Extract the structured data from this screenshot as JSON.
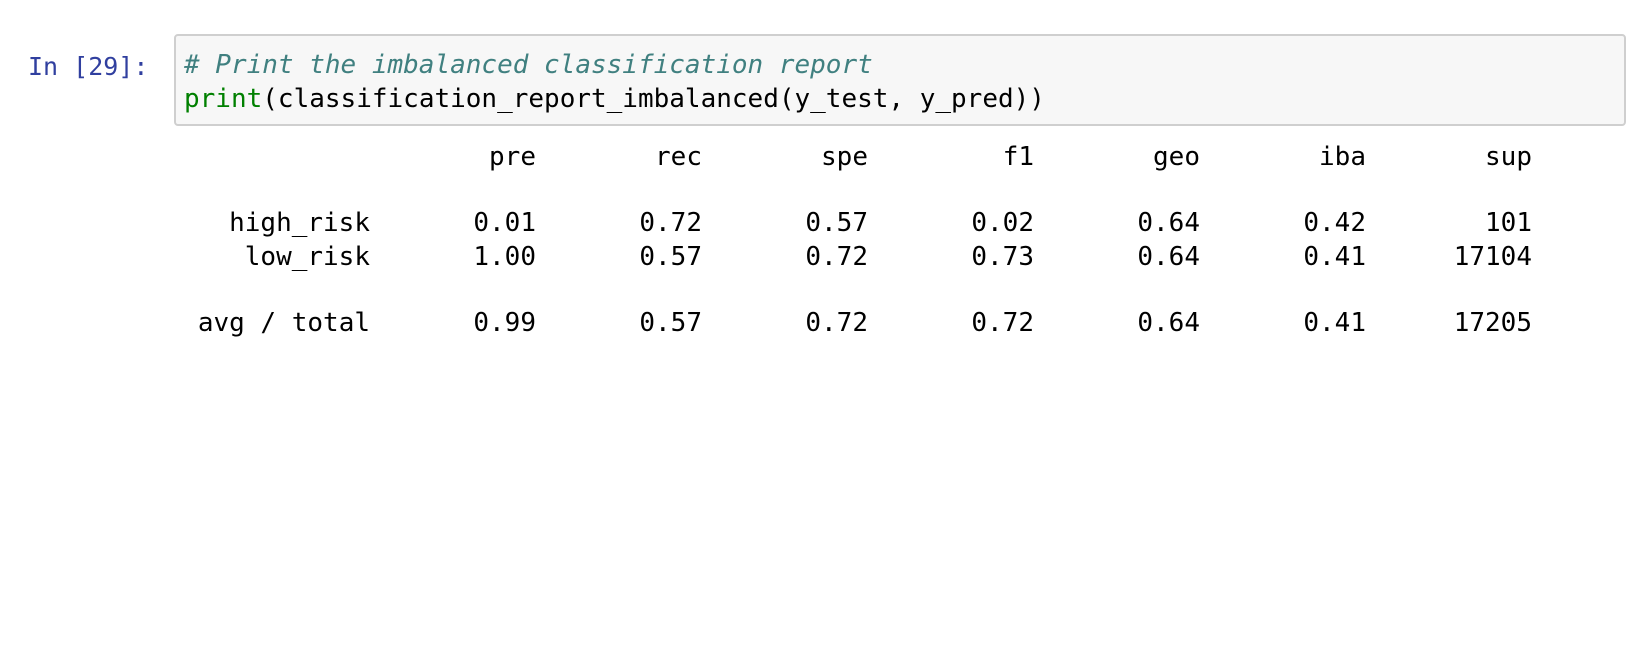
{
  "cell": {
    "prompt": "In [29]:",
    "code": {
      "comment": "# Print the imbalanced classification report",
      "print_keyword": "print",
      "call_rest": "(classification_report_imbalanced(y_test, y_pred))"
    }
  },
  "report": {
    "headers": [
      "pre",
      "rec",
      "spe",
      "f1",
      "geo",
      "iba",
      "sup"
    ],
    "rows": [
      {
        "label": "high_risk",
        "values": [
          "0.01",
          "0.72",
          "0.57",
          "0.02",
          "0.64",
          "0.42",
          "101"
        ]
      },
      {
        "label": "low_risk",
        "values": [
          "1.00",
          "0.57",
          "0.72",
          "0.73",
          "0.64",
          "0.41",
          "17104"
        ]
      }
    ],
    "total": {
      "label": "avg / total",
      "values": [
        "0.99",
        "0.57",
        "0.72",
        "0.72",
        "0.64",
        "0.41",
        "17205"
      ]
    }
  },
  "colors": {
    "prompt": "#303f9f",
    "comment": "#408080",
    "builtin": "#008000",
    "input_bg": "#f7f7f7",
    "input_border": "#cfcfcf"
  }
}
